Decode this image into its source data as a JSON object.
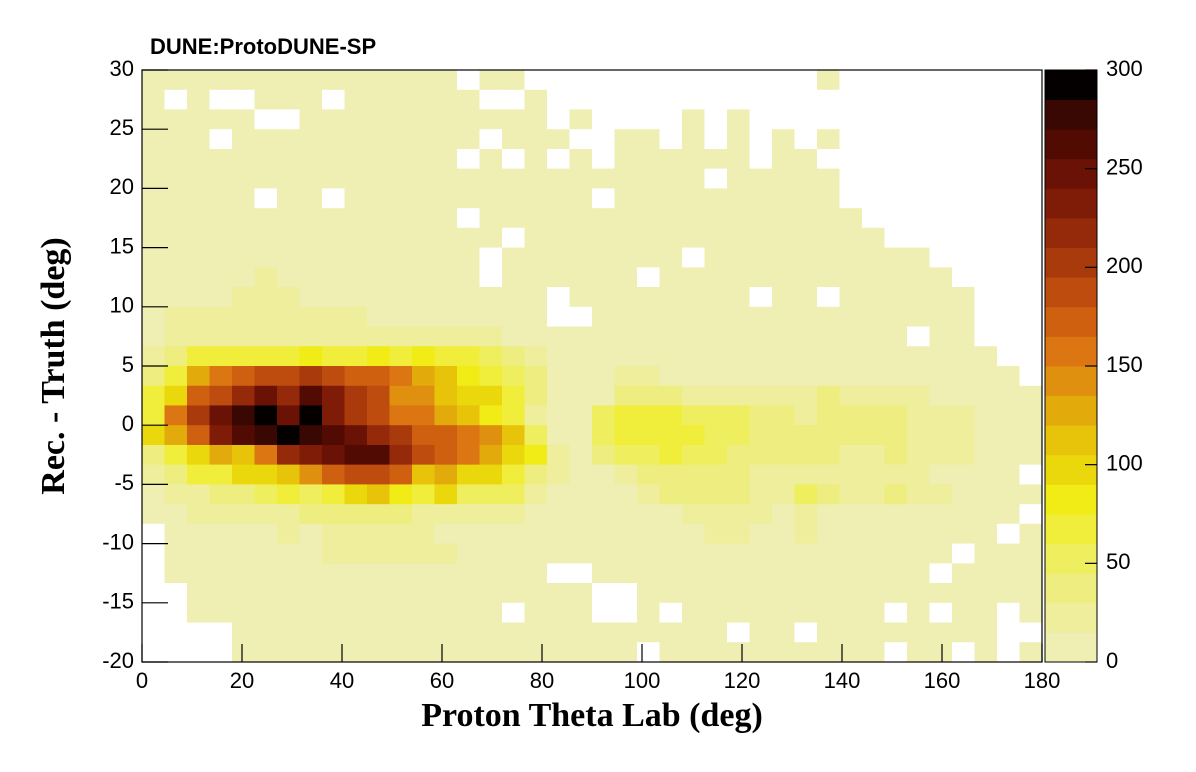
{
  "chart_data": {
    "type": "heatmap",
    "title": "DUNE:ProtoDUNE-SP",
    "xlabel": "Proton Theta Lab (deg)",
    "ylabel": "Rec. - Truth (deg)",
    "xlim": [
      0,
      180
    ],
    "xticks": [
      0,
      20,
      40,
      60,
      80,
      100,
      120,
      140,
      160,
      180
    ],
    "ylim": [
      -20,
      30
    ],
    "yticks": [
      -20,
      -15,
      -10,
      -5,
      0,
      5,
      10,
      15,
      20,
      25,
      30
    ],
    "zlim": [
      0,
      300
    ],
    "zticks": [
      0,
      50,
      100,
      150,
      200,
      250,
      300
    ],
    "colors": [
      "#efefb3",
      "#eeee9d",
      "#eded80",
      "#eeee5e",
      "#f0ee3a",
      "#f1ec15",
      "#ebd80c",
      "#e7c40a",
      "#e3aa0b",
      "#df900f",
      "#db7612",
      "#cf6010",
      "#bd4c0e",
      "#a93a0c",
      "#952a0a",
      "#7f1c07",
      "#691205",
      "#520b03",
      "#3a0803",
      "#050000"
    ],
    "xbins": [
      0,
      4.5,
      9,
      13.5,
      18,
      22.5,
      27,
      31.5,
      36,
      40.5,
      45,
      49.5,
      54,
      58.5,
      63,
      67.5,
      72,
      76.5,
      81,
      85.5,
      90,
      94.5,
      99,
      103.5,
      108,
      112.5,
      117,
      121.5,
      126,
      130.5,
      135,
      139.5,
      144,
      148.5,
      153,
      157.5,
      162,
      166.5,
      171,
      175.5,
      180
    ],
    "ybins": [
      30,
      28.33,
      26.67,
      25,
      23.33,
      21.67,
      20,
      18.33,
      16.67,
      15,
      13.33,
      11.67,
      10,
      8.33,
      6.67,
      5,
      3.33,
      1.67,
      0,
      -1.67,
      -3.33,
      -5,
      -6.67,
      -8.33,
      -10,
      -11.67,
      -13.33,
      -15,
      -16.67,
      -18.33,
      -20
    ],
    "z": [
      [
        5,
        5,
        5,
        5,
        5,
        5,
        5,
        5,
        5,
        5,
        5,
        5,
        5,
        5,
        0,
        5,
        5,
        0,
        0,
        0,
        0,
        0,
        0,
        0,
        0,
        0,
        0,
        0,
        0,
        0,
        5,
        0,
        0,
        0,
        0,
        0,
        0,
        0,
        0,
        0
      ],
      [
        5,
        0,
        5,
        0,
        0,
        5,
        5,
        5,
        0,
        5,
        5,
        5,
        5,
        5,
        5,
        0,
        0,
        5,
        0,
        0,
        0,
        0,
        0,
        0,
        0,
        0,
        0,
        0,
        0,
        0,
        0,
        0,
        0,
        0,
        0,
        0,
        0,
        0,
        0,
        0
      ],
      [
        5,
        5,
        5,
        5,
        5,
        0,
        0,
        5,
        5,
        5,
        5,
        5,
        5,
        5,
        5,
        5,
        5,
        5,
        0,
        5,
        0,
        0,
        0,
        0,
        5,
        0,
        5,
        0,
        0,
        0,
        0,
        0,
        0,
        0,
        0,
        0,
        0,
        0,
        0,
        0
      ],
      [
        5,
        5,
        5,
        0,
        5,
        5,
        5,
        5,
        5,
        5,
        5,
        5,
        5,
        5,
        5,
        0,
        5,
        5,
        5,
        0,
        0,
        5,
        5,
        0,
        5,
        0,
        5,
        0,
        5,
        0,
        5,
        0,
        0,
        0,
        0,
        0,
        0,
        0,
        0,
        0
      ],
      [
        5,
        5,
        5,
        5,
        5,
        5,
        5,
        5,
        5,
        5,
        5,
        5,
        5,
        5,
        0,
        5,
        0,
        5,
        0,
        5,
        0,
        5,
        5,
        5,
        5,
        5,
        5,
        0,
        5,
        5,
        0,
        0,
        0,
        0,
        0,
        0,
        0,
        0,
        0,
        0
      ],
      [
        5,
        5,
        5,
        5,
        5,
        5,
        5,
        5,
        5,
        5,
        5,
        5,
        5,
        5,
        5,
        5,
        5,
        5,
        5,
        5,
        5,
        5,
        5,
        5,
        5,
        0,
        5,
        5,
        5,
        5,
        5,
        0,
        0,
        0,
        0,
        0,
        0,
        0,
        0,
        0
      ],
      [
        5,
        5,
        5,
        5,
        5,
        0,
        5,
        5,
        0,
        5,
        5,
        5,
        5,
        5,
        5,
        5,
        5,
        5,
        5,
        5,
        0,
        5,
        5,
        5,
        5,
        5,
        5,
        5,
        5,
        5,
        5,
        0,
        0,
        0,
        0,
        0,
        0,
        0,
        0,
        0
      ],
      [
        5,
        5,
        5,
        5,
        5,
        5,
        5,
        5,
        5,
        5,
        5,
        5,
        5,
        5,
        0,
        5,
        5,
        5,
        5,
        5,
        5,
        5,
        5,
        5,
        5,
        5,
        5,
        5,
        5,
        5,
        5,
        5,
        0,
        0,
        0,
        0,
        0,
        0,
        0,
        0
      ],
      [
        5,
        5,
        5,
        5,
        5,
        5,
        5,
        5,
        5,
        5,
        5,
        5,
        5,
        5,
        5,
        5,
        0,
        5,
        5,
        5,
        5,
        5,
        5,
        5,
        5,
        5,
        5,
        5,
        5,
        5,
        5,
        5,
        5,
        0,
        0,
        0,
        0,
        0,
        0,
        0
      ],
      [
        5,
        5,
        5,
        5,
        5,
        5,
        5,
        5,
        5,
        5,
        5,
        5,
        5,
        5,
        5,
        0,
        5,
        5,
        5,
        5,
        5,
        5,
        5,
        5,
        0,
        5,
        5,
        5,
        5,
        5,
        5,
        5,
        5,
        5,
        5,
        0,
        0,
        0,
        0,
        0
      ],
      [
        5,
        5,
        5,
        5,
        5,
        15,
        5,
        5,
        5,
        5,
        5,
        5,
        5,
        5,
        5,
        0,
        5,
        5,
        5,
        5,
        5,
        5,
        0,
        5,
        5,
        5,
        5,
        5,
        5,
        5,
        5,
        5,
        5,
        5,
        5,
        5,
        0,
        0,
        0,
        0
      ],
      [
        5,
        5,
        5,
        5,
        15,
        15,
        15,
        5,
        5,
        5,
        5,
        5,
        5,
        5,
        5,
        5,
        5,
        5,
        0,
        5,
        5,
        5,
        5,
        5,
        5,
        5,
        5,
        0,
        5,
        5,
        0,
        5,
        5,
        5,
        5,
        5,
        5,
        0,
        0,
        0
      ],
      [
        5,
        15,
        15,
        15,
        15,
        15,
        15,
        15,
        15,
        15,
        5,
        5,
        5,
        5,
        5,
        5,
        5,
        5,
        0,
        0,
        5,
        5,
        5,
        5,
        5,
        5,
        5,
        5,
        5,
        5,
        5,
        5,
        5,
        5,
        5,
        5,
        5,
        0,
        0,
        0
      ],
      [
        5,
        15,
        25,
        25,
        20,
        25,
        20,
        20,
        20,
        25,
        20,
        25,
        25,
        25,
        20,
        15,
        5,
        5,
        5,
        5,
        5,
        5,
        5,
        5,
        5,
        5,
        5,
        5,
        5,
        5,
        5,
        5,
        5,
        5,
        0,
        5,
        5,
        0,
        0,
        0
      ],
      [
        20,
        35,
        65,
        65,
        70,
        70,
        70,
        75,
        65,
        70,
        75,
        70,
        75,
        65,
        65,
        55,
        40,
        20,
        10,
        5,
        5,
        5,
        5,
        5,
        5,
        5,
        5,
        5,
        5,
        5,
        5,
        5,
        5,
        5,
        5,
        5,
        5,
        5,
        0,
        0
      ],
      [
        35,
        60,
        120,
        160,
        175,
        185,
        185,
        200,
        190,
        175,
        170,
        150,
        130,
        110,
        75,
        65,
        50,
        30,
        10,
        5,
        5,
        20,
        20,
        10,
        5,
        5,
        5,
        5,
        5,
        5,
        5,
        5,
        5,
        5,
        5,
        5,
        5,
        5,
        5,
        0
      ],
      [
        65,
        100,
        170,
        185,
        220,
        240,
        215,
        255,
        230,
        200,
        185,
        140,
        135,
        115,
        95,
        90,
        70,
        35,
        10,
        5,
        10,
        35,
        35,
        30,
        25,
        25,
        20,
        15,
        15,
        15,
        30,
        20,
        15,
        15,
        15,
        10,
        10,
        5,
        5,
        5
      ],
      [
        70,
        150,
        200,
        240,
        270,
        285,
        250,
        290,
        225,
        195,
        180,
        150,
        150,
        120,
        105,
        80,
        60,
        20,
        10,
        10,
        45,
        65,
        65,
        60,
        45,
        45,
        45,
        40,
        30,
        25,
        30,
        35,
        30,
        30,
        25,
        20,
        15,
        10,
        5,
        5
      ],
      [
        95,
        120,
        175,
        230,
        260,
        270,
        285,
        280,
        255,
        250,
        215,
        195,
        170,
        175,
        160,
        145,
        110,
        55,
        10,
        10,
        50,
        70,
        70,
        65,
        60,
        55,
        50,
        40,
        40,
        35,
        35,
        40,
        40,
        30,
        25,
        20,
        15,
        10,
        5,
        5
      ],
      [
        35,
        65,
        95,
        120,
        115,
        150,
        210,
        235,
        245,
        260,
        265,
        215,
        190,
        170,
        160,
        130,
        100,
        75,
        15,
        5,
        30,
        45,
        50,
        60,
        50,
        45,
        40,
        35,
        30,
        30,
        30,
        25,
        25,
        30,
        25,
        20,
        20,
        10,
        5,
        5
      ],
      [
        20,
        35,
        60,
        70,
        90,
        100,
        110,
        145,
        170,
        180,
        180,
        170,
        110,
        125,
        100,
        90,
        65,
        40,
        15,
        5,
        5,
        20,
        30,
        30,
        35,
        40,
        30,
        25,
        20,
        20,
        20,
        25,
        20,
        20,
        15,
        10,
        10,
        5,
        5,
        0
      ],
      [
        10,
        25,
        25,
        30,
        30,
        50,
        65,
        50,
        70,
        95,
        105,
        85,
        65,
        95,
        55,
        55,
        45,
        20,
        10,
        5,
        5,
        5,
        20,
        30,
        30,
        30,
        40,
        25,
        20,
        45,
        30,
        20,
        20,
        30,
        15,
        25,
        10,
        5,
        5,
        5
      ],
      [
        5,
        10,
        20,
        20,
        20,
        20,
        25,
        30,
        30,
        35,
        35,
        30,
        20,
        20,
        20,
        15,
        15,
        5,
        5,
        5,
        5,
        5,
        5,
        5,
        15,
        15,
        20,
        20,
        5,
        15,
        10,
        5,
        5,
        5,
        5,
        5,
        5,
        5,
        5,
        0
      ],
      [
        0,
        5,
        10,
        10,
        10,
        10,
        25,
        10,
        25,
        15,
        15,
        15,
        15,
        10,
        5,
        5,
        5,
        5,
        5,
        5,
        5,
        5,
        5,
        5,
        5,
        20,
        20,
        10,
        10,
        20,
        5,
        5,
        5,
        5,
        5,
        5,
        5,
        5,
        0,
        5
      ],
      [
        0,
        5,
        5,
        5,
        5,
        5,
        5,
        5,
        15,
        15,
        15,
        15,
        15,
        15,
        5,
        5,
        5,
        5,
        5,
        5,
        5,
        5,
        5,
        5,
        5,
        5,
        5,
        5,
        5,
        5,
        5,
        5,
        5,
        5,
        5,
        5,
        0,
        5,
        5,
        5
      ],
      [
        0,
        5,
        5,
        5,
        5,
        5,
        5,
        5,
        5,
        5,
        5,
        5,
        5,
        5,
        5,
        5,
        5,
        5,
        0,
        0,
        5,
        5,
        5,
        5,
        5,
        5,
        5,
        5,
        5,
        5,
        5,
        5,
        5,
        5,
        5,
        0,
        5,
        5,
        5,
        5
      ],
      [
        0,
        0,
        5,
        5,
        5,
        5,
        5,
        5,
        5,
        5,
        5,
        5,
        5,
        5,
        5,
        5,
        5,
        5,
        5,
        5,
        0,
        0,
        5,
        5,
        5,
        5,
        5,
        5,
        5,
        5,
        5,
        5,
        5,
        5,
        5,
        5,
        5,
        5,
        5,
        5
      ],
      [
        0,
        0,
        5,
        5,
        5,
        5,
        5,
        5,
        5,
        5,
        5,
        5,
        5,
        5,
        5,
        5,
        0,
        5,
        5,
        5,
        0,
        0,
        5,
        0,
        5,
        5,
        5,
        5,
        5,
        5,
        5,
        5,
        5,
        0,
        5,
        0,
        5,
        5,
        0,
        5
      ],
      [
        0,
        0,
        0,
        0,
        5,
        5,
        5,
        5,
        5,
        5,
        5,
        5,
        5,
        5,
        5,
        5,
        5,
        5,
        5,
        5,
        5,
        5,
        5,
        5,
        5,
        5,
        0,
        5,
        5,
        0,
        5,
        5,
        5,
        5,
        5,
        5,
        5,
        5,
        0,
        0
      ],
      [
        0,
        0,
        0,
        0,
        5,
        5,
        5,
        5,
        5,
        5,
        5,
        5,
        5,
        5,
        5,
        5,
        5,
        5,
        5,
        5,
        5,
        5,
        0,
        5,
        5,
        5,
        5,
        5,
        5,
        5,
        5,
        5,
        5,
        0,
        5,
        5,
        0,
        5,
        0,
        5
      ]
    ]
  }
}
